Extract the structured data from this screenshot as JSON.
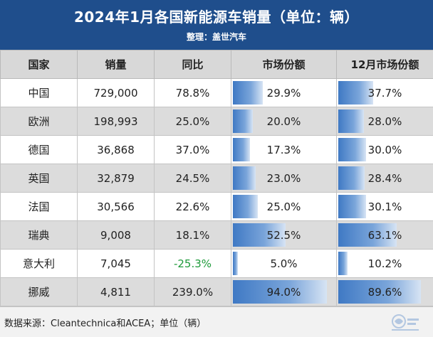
{
  "header": {
    "title": "2024年1月各国新能源车销量（单位：辆）",
    "subtitle": "整理：盖世汽车"
  },
  "table": {
    "columns": [
      "国家",
      "销量",
      "同比",
      "市场份额",
      "12月市场份额"
    ],
    "rows": [
      {
        "country": "中国",
        "sales": "729,000",
        "yoy": "78.8%",
        "share": "29.9%",
        "share_pct": 29.9,
        "dec_share": "37.7%",
        "dec_share_pct": 37.7
      },
      {
        "country": "欧洲",
        "sales": "198,993",
        "yoy": "25.0%",
        "share": "20.0%",
        "share_pct": 20.0,
        "dec_share": "28.0%",
        "dec_share_pct": 28.0
      },
      {
        "country": "德国",
        "sales": "36,868",
        "yoy": "37.0%",
        "share": "17.3%",
        "share_pct": 17.3,
        "dec_share": "30.0%",
        "dec_share_pct": 30.0
      },
      {
        "country": "英国",
        "sales": "32,879",
        "yoy": "24.5%",
        "share": "23.0%",
        "share_pct": 23.0,
        "dec_share": "28.4%",
        "dec_share_pct": 28.4
      },
      {
        "country": "法国",
        "sales": "30,566",
        "yoy": "22.6%",
        "share": "25.0%",
        "share_pct": 25.0,
        "dec_share": "30.1%",
        "dec_share_pct": 30.1
      },
      {
        "country": "瑞典",
        "sales": "9,008",
        "yoy": "18.1%",
        "share": "52.5%",
        "share_pct": 52.5,
        "dec_share": "63.1%",
        "dec_share_pct": 63.1
      },
      {
        "country": "意大利",
        "sales": "7,045",
        "yoy": "-25.3%",
        "share": "5.0%",
        "share_pct": 5.0,
        "dec_share": "10.2%",
        "dec_share_pct": 10.2
      },
      {
        "country": "挪威",
        "sales": "4,811",
        "yoy": "239.0%",
        "share": "94.0%",
        "share_pct": 94.0,
        "dec_share": "89.6%",
        "dec_share_pct": 89.6
      }
    ]
  },
  "footer": {
    "source": "数据来源：Cleantechnica和ACEA；单位（辆）",
    "watermark_icon": "gasgoo-logo-icon"
  },
  "colors": {
    "header_bg": "#1f4e8c",
    "positive": "#d0232a",
    "negative": "#1e9a3a",
    "bar": "#3f79c4"
  }
}
